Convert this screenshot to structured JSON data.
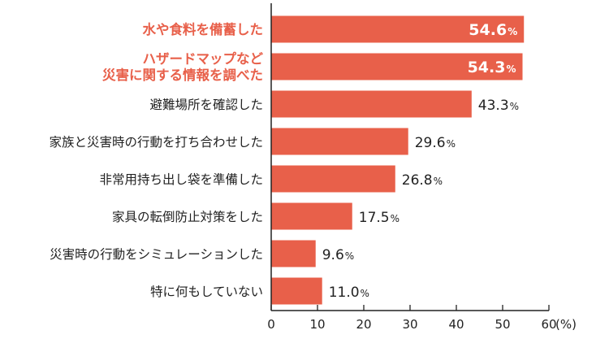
{
  "chart_data": {
    "type": "bar",
    "orientation": "horizontal",
    "categories": [
      [
        "水や食料を備蓄した"
      ],
      [
        "ハザードマップなど",
        "災害に関する情報を調べた"
      ],
      [
        "避難場所を確認した"
      ],
      [
        "家族と災害時の行動を打ち合わせした"
      ],
      [
        "非常用持ち出し袋を準備した"
      ],
      [
        "家具の転倒防止対策をした"
      ],
      [
        "災害時の行動をシミュレーションした"
      ],
      [
        "特に何もしていない"
      ]
    ],
    "values": [
      54.6,
      54.3,
      43.3,
      29.6,
      26.8,
      17.5,
      9.6,
      11.0
    ],
    "value_labels": [
      "54.6",
      "54.3",
      "43.3",
      "29.6",
      "26.8",
      "17.5",
      "9.6",
      "11.0"
    ],
    "value_unit": "%",
    "highlighted": [
      true,
      true,
      false,
      false,
      false,
      false,
      false,
      false
    ],
    "xlim": [
      0,
      60
    ],
    "xticks": [
      "0",
      "10",
      "20",
      "30",
      "40",
      "50",
      "60"
    ],
    "xunit": "(%)",
    "grid": false,
    "colors": {
      "bar": "#e8604a",
      "highlight_text": "#e8604a",
      "text": "#222222",
      "axis": "#222222"
    }
  }
}
